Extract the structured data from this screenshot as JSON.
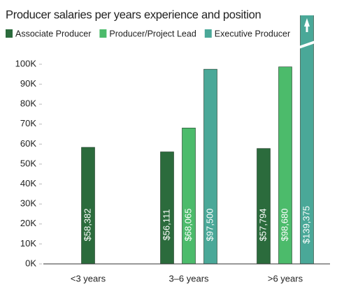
{
  "chart_data": {
    "type": "bar",
    "title": "Producer salaries per years experience and position",
    "categories": [
      "<3 years",
      "3–6 years",
      ">6 years"
    ],
    "series": [
      {
        "name": "Associate Producer",
        "color": "#2b6b3c",
        "values": [
          58382,
          56111,
          57794
        ],
        "value_labels": [
          "$58,382",
          "$56,111",
          "$57,794"
        ]
      },
      {
        "name": "Producer/Project Lead",
        "color": "#4cbb6b",
        "values": [
          null,
          68065,
          98680
        ],
        "value_labels": [
          null,
          "$68,065",
          "$98,680"
        ]
      },
      {
        "name": "Executive Producer",
        "color": "#4aa898",
        "values": [
          null,
          97500,
          139375
        ],
        "value_labels": [
          null,
          "$97,500",
          "$139,375"
        ]
      }
    ],
    "ylim": [
      0,
      100000
    ],
    "yticks": [
      {
        "value": 0,
        "label": "0K"
      },
      {
        "value": 10000,
        "label": "10K"
      },
      {
        "value": 20000,
        "label": "20K"
      },
      {
        "value": 30000,
        "label": "30K"
      },
      {
        "value": 40000,
        "label": "40K"
      },
      {
        "value": 50000,
        "label": "50K"
      },
      {
        "value": 60000,
        "label": "60K"
      },
      {
        "value": 70000,
        "label": "70K"
      },
      {
        "value": 80000,
        "label": "80K"
      },
      {
        "value": 90000,
        "label": "90K"
      },
      {
        "value": 100000,
        "label": "100K"
      }
    ],
    "grid": false
  }
}
